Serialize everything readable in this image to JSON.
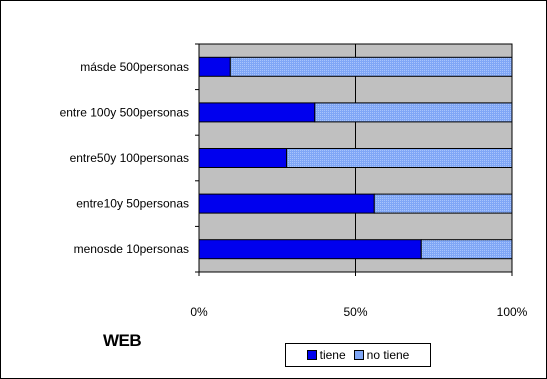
{
  "chart_data": {
    "type": "bar",
    "orientation": "horizontal",
    "stacked": "percent",
    "title": "WEB",
    "categories": [
      "másde 500personas",
      "entre 100y 500personas",
      "entre50y 100personas",
      "entre10y 50personas",
      "menosde 10personas"
    ],
    "series": [
      {
        "name": "tiene",
        "values": [
          10,
          37,
          28,
          56,
          71
        ],
        "color": "#0000ee"
      },
      {
        "name": "no tiene",
        "values": [
          90,
          63,
          72,
          44,
          29
        ],
        "color": "#7fa6f6"
      }
    ],
    "xlim": [
      0,
      100
    ],
    "x_ticks": [
      "0%",
      "50%",
      "100%"
    ],
    "grid": "vertical",
    "legend": "bottom",
    "plot_background": "#c0c0c0"
  }
}
